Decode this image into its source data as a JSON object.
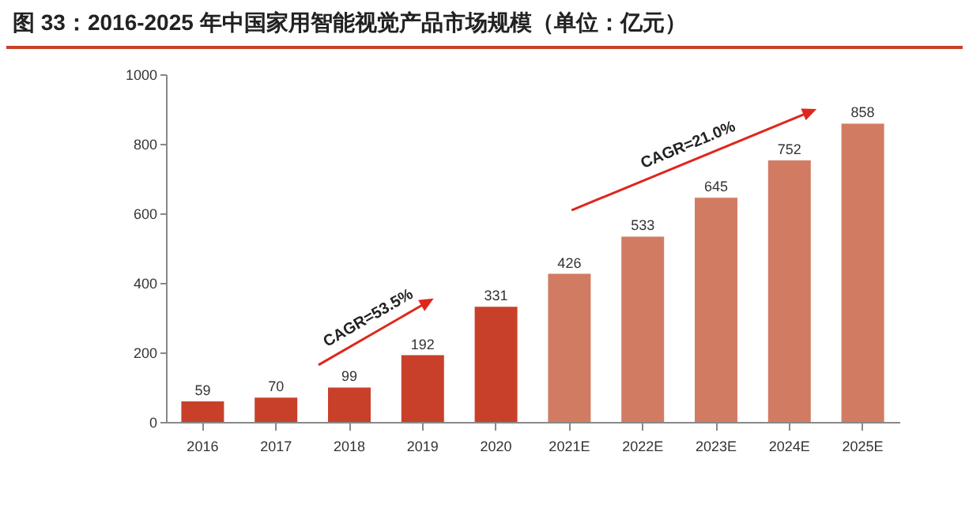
{
  "chart_data": {
    "type": "bar",
    "title": "图 33：2016-2025 年中国家用智能视觉产品市场规模（单位：亿元）",
    "categories": [
      "2016",
      "2017",
      "2018",
      "2019",
      "2020",
      "2021E",
      "2022E",
      "2023E",
      "2024E",
      "2025E"
    ],
    "values": [
      59,
      70,
      99,
      192,
      331,
      426,
      533,
      645,
      752,
      858
    ],
    "colors": [
      "#c9402a",
      "#c9402a",
      "#c9402a",
      "#c9402a",
      "#c9402a",
      "#d27b63",
      "#d27b63",
      "#d27b63",
      "#d27b63",
      "#d27b63"
    ],
    "ylim": [
      0,
      1000
    ],
    "yticks": [
      0,
      200,
      400,
      600,
      800,
      {
        "value": 1000,
        "label": "1000"
      }
    ],
    "grid": false,
    "data_labels": true,
    "annotations": [
      "CAGR=53.5%",
      "CAGR=21.0%"
    ]
  }
}
